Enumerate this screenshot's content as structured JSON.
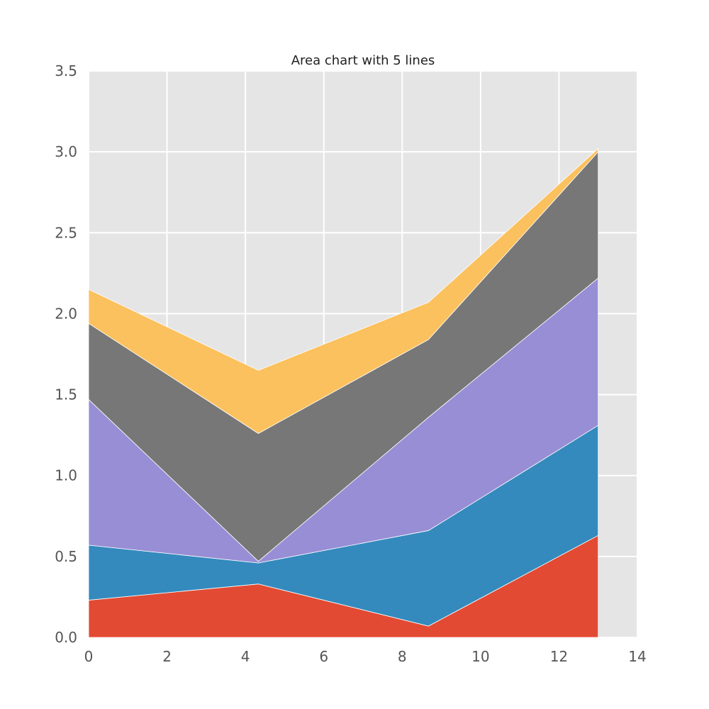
{
  "chart_data": {
    "type": "area",
    "stacked": true,
    "title": "Area chart with 5 lines",
    "xlabel": "",
    "ylabel": "",
    "xlim": [
      0,
      14
    ],
    "ylim": [
      0,
      3.5
    ],
    "xticks": [
      0,
      2,
      4,
      6,
      8,
      10,
      12,
      14
    ],
    "yticks": [
      0.0,
      0.5,
      1.0,
      1.5,
      2.0,
      2.5,
      3.0,
      3.5
    ],
    "xtick_labels": [
      "0",
      "2",
      "4",
      "6",
      "8",
      "10",
      "12",
      "14"
    ],
    "ytick_labels": [
      "0.0",
      "0.5",
      "1.0",
      "1.5",
      "2.0",
      "2.5",
      "3.0",
      "3.5"
    ],
    "grid": true,
    "legend": "none",
    "background": "#e5e5e5",
    "x": [
      0,
      4.33,
      8.67,
      13
    ],
    "series": [
      {
        "values": [
          0.23,
          0.33,
          0.07,
          0.63
        ],
        "color": "#e24a33"
      },
      {
        "values": [
          0.34,
          0.13,
          0.59,
          0.68
        ],
        "color": "#348abd"
      },
      {
        "values": [
          0.9,
          0.01,
          0.7,
          0.91
        ],
        "color": "#988ed5"
      },
      {
        "values": [
          0.47,
          0.79,
          0.48,
          0.78
        ],
        "color": "#777777"
      },
      {
        "values": [
          0.21,
          0.39,
          0.23,
          0.02
        ],
        "color": "#fbc15e"
      }
    ]
  }
}
